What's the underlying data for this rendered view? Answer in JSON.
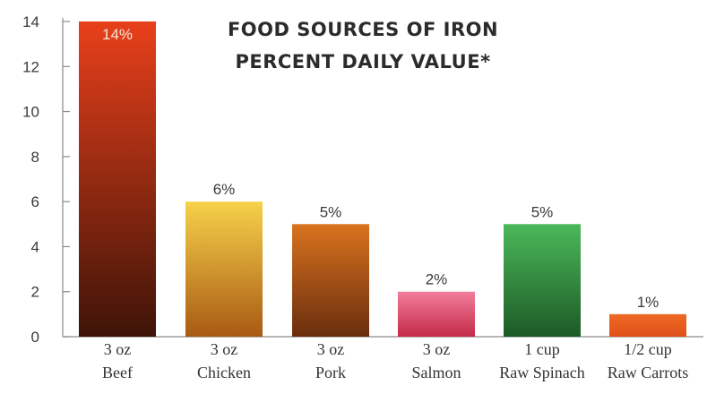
{
  "chart_data": {
    "type": "bar",
    "title_lines": [
      "FOOD SOURCES OF IRON",
      "PERCENT DAILY VALUE*"
    ],
    "categories": [
      {
        "line1": "3 oz",
        "line2": "Beef"
      },
      {
        "line1": "3 oz",
        "line2": "Chicken"
      },
      {
        "line1": "3 oz",
        "line2": "Pork"
      },
      {
        "line1": "3 oz",
        "line2": "Salmon"
      },
      {
        "line1": "1 cup",
        "line2": "Raw Spinach"
      },
      {
        "line1": "1/2 cup",
        "line2": "Raw Carrots"
      }
    ],
    "values": [
      14,
      6,
      5,
      2,
      5,
      1
    ],
    "data_labels": [
      "14%",
      "6%",
      "5%",
      "2%",
      "5%",
      "1%"
    ],
    "y_ticks": [
      0,
      2,
      4,
      6,
      8,
      10,
      12,
      14
    ],
    "ylim": [
      0,
      14
    ],
    "grid": false,
    "legend": "none",
    "bar_colors": [
      {
        "top": "#e8401a",
        "bottom": "#3e1408"
      },
      {
        "top": "#f7d24a",
        "bottom": "#a85a12"
      },
      {
        "top": "#d9731e",
        "bottom": "#6a2e0e"
      },
      {
        "top": "#f27e9c",
        "bottom": "#c42a48"
      },
      {
        "top": "#4cb85a",
        "bottom": "#1c5a26"
      },
      {
        "top": "#ee6a24",
        "bottom": "#e0501a"
      }
    ],
    "axis_color": "#8a8a8a"
  }
}
